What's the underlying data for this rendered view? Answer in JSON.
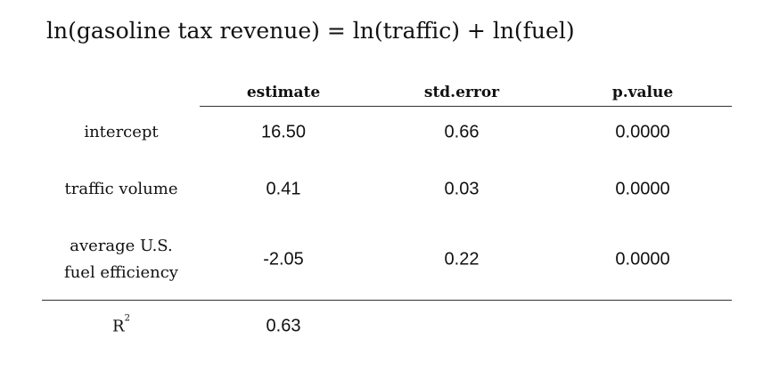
{
  "title": "ln(gasoline tax revenue) = ln(traffic) + ln(fuel)",
  "table": {
    "columns": [
      "estimate",
      "std.error",
      "p.value"
    ],
    "rows": [
      {
        "label": "intercept",
        "estimate": "16.50",
        "std_error": "0.66",
        "p_value": "0.0000"
      },
      {
        "label": "traffic volume",
        "estimate": "0.41",
        "std_error": "0.03",
        "p_value": "0.0000"
      },
      {
        "label_line1": "average U.S.",
        "label_line2": "fuel efficiency",
        "estimate": "-2.05",
        "std_error": "0.22",
        "p_value": "0.0000"
      }
    ],
    "r2": {
      "label": "R",
      "superscript": "2",
      "value": "0.63"
    }
  }
}
